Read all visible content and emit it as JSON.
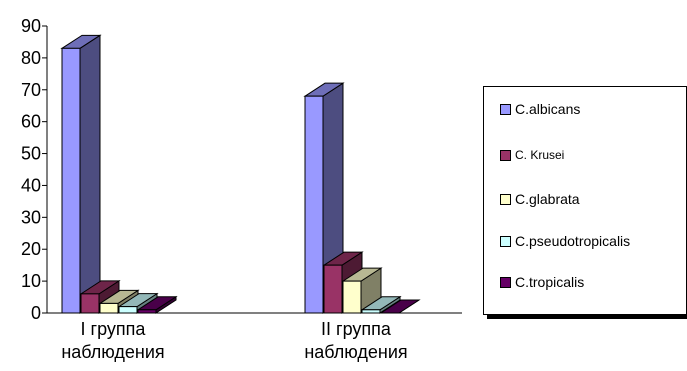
{
  "chart_data": {
    "type": "bar",
    "title": "",
    "xlabel": "",
    "ylabel": "",
    "ylim": [
      0,
      90
    ],
    "yticks": [
      0,
      10,
      20,
      30,
      40,
      50,
      60,
      70,
      80,
      90
    ],
    "grid": false,
    "legend_position": "right",
    "categories": [
      [
        "I группа",
        "наблюдения"
      ],
      [
        "II группа",
        "наблюдения"
      ]
    ],
    "series": [
      {
        "name": "C.albicans",
        "values": [
          83,
          68
        ],
        "color": "#9999FF"
      },
      {
        "name": "C. Krusei",
        "values": [
          6,
          15
        ],
        "color": "#993366"
      },
      {
        "name": "C.glabrata",
        "values": [
          3,
          10
        ],
        "color": "#FFFFCC"
      },
      {
        "name": "C.pseudotropicalis",
        "values": [
          2,
          1
        ],
        "color": "#CCFFFF"
      },
      {
        "name": "C.tropicalis",
        "values": [
          1,
          0
        ],
        "color": "#660066"
      }
    ]
  }
}
